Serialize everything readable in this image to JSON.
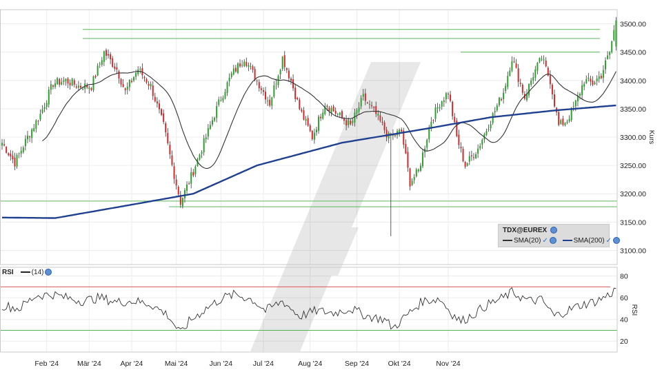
{
  "chart_data": [
    {
      "type": "candlestick",
      "instrument": "TDX@EUREX",
      "ylabel": "Kurs",
      "ylim": [
        3075,
        3525
      ],
      "yticks": [
        "3500.00",
        "3450.00",
        "3400.00",
        "3350.00",
        "3300.00",
        "3250.00",
        "3200.00",
        "3150.00",
        "3100.00"
      ],
      "ytick_values": [
        3500,
        3450,
        3400,
        3350,
        3300,
        3250,
        3200,
        3150,
        3100
      ],
      "xticks": [
        "Feb '24",
        "Mär '24",
        "Apr '24",
        "Mai '24",
        "Jun '24",
        "Jul '24",
        "Aug '24",
        "Sep '24",
        "Okt '24",
        "Nov '24"
      ],
      "grid": true,
      "up_color": "#2ca02c",
      "down_color": "#d62728",
      "sma20_color": "#333333",
      "sma200_color": "#1f3f8f",
      "horizontal_lines": [
        3490,
        3474,
        3450,
        3187,
        3177
      ],
      "legend": {
        "title": "TDX@EUREX",
        "items": [
          "SMA(20)",
          "SMA(200)"
        ]
      },
      "close_anchors": [
        [
          0,
          3290
        ],
        [
          6,
          3255
        ],
        [
          12,
          3300
        ],
        [
          18,
          3340
        ],
        [
          24,
          3395
        ],
        [
          30,
          3400
        ],
        [
          36,
          3390
        ],
        [
          42,
          3390
        ],
        [
          48,
          3450
        ],
        [
          54,
          3420
        ],
        [
          58,
          3380
        ],
        [
          64,
          3420
        ],
        [
          70,
          3390
        ],
        [
          76,
          3320
        ],
        [
          80,
          3250
        ],
        [
          84,
          3185
        ],
        [
          90,
          3240
        ],
        [
          96,
          3300
        ],
        [
          102,
          3360
        ],
        [
          108,
          3410
        ],
        [
          114,
          3440
        ],
        [
          120,
          3400
        ],
        [
          126,
          3360
        ],
        [
          132,
          3440
        ],
        [
          136,
          3400
        ],
        [
          140,
          3350
        ],
        [
          146,
          3300
        ],
        [
          152,
          3360
        ],
        [
          158,
          3340
        ],
        [
          164,
          3320
        ],
        [
          170,
          3370
        ],
        [
          176,
          3340
        ],
        [
          182,
          3300
        ],
        [
          188,
          3310
        ],
        [
          192,
          3220
        ],
        [
          196,
          3240
        ],
        [
          202,
          3330
        ],
        [
          206,
          3360
        ],
        [
          210,
          3380
        ],
        [
          214,
          3300
        ],
        [
          218,
          3250
        ],
        [
          224,
          3280
        ],
        [
          230,
          3330
        ],
        [
          236,
          3380
        ],
        [
          240,
          3440
        ],
        [
          246,
          3370
        ],
        [
          250,
          3410
        ],
        [
          254,
          3440
        ],
        [
          258,
          3400
        ],
        [
          262,
          3320
        ],
        [
          266,
          3330
        ],
        [
          270,
          3360
        ],
        [
          274,
          3400
        ],
        [
          278,
          3395
        ],
        [
          282,
          3410
        ],
        [
          286,
          3450
        ],
        [
          289,
          3506
        ]
      ],
      "sma200_anchors": [
        [
          0,
          3158
        ],
        [
          25,
          3157
        ],
        [
          60,
          3180
        ],
        [
          90,
          3200
        ],
        [
          120,
          3250
        ],
        [
          160,
          3290
        ],
        [
          200,
          3315
        ],
        [
          230,
          3335
        ],
        [
          260,
          3347
        ],
        [
          289,
          3356
        ]
      ]
    },
    {
      "type": "line",
      "name": "RSI",
      "period": "(14)",
      "ylabel": "RSI",
      "ylim": [
        10,
        88
      ],
      "yticks": [
        "80",
        "60",
        "40",
        "20"
      ],
      "ytick_values": [
        80,
        60,
        40,
        20
      ],
      "overbought": 70,
      "oversold": 30,
      "overbought_color": "#e05555",
      "oversold_color": "#55b055",
      "anchors": [
        [
          0,
          53
        ],
        [
          8,
          50
        ],
        [
          16,
          62
        ],
        [
          24,
          63
        ],
        [
          30,
          60
        ],
        [
          38,
          57
        ],
        [
          46,
          60
        ],
        [
          54,
          56
        ],
        [
          62,
          57
        ],
        [
          70,
          54
        ],
        [
          78,
          44
        ],
        [
          84,
          27
        ],
        [
          88,
          38
        ],
        [
          96,
          50
        ],
        [
          104,
          60
        ],
        [
          110,
          63
        ],
        [
          118,
          58
        ],
        [
          124,
          48
        ],
        [
          132,
          57
        ],
        [
          140,
          43
        ],
        [
          148,
          48
        ],
        [
          156,
          46
        ],
        [
          164,
          50
        ],
        [
          172,
          43
        ],
        [
          180,
          40
        ],
        [
          184,
          32
        ],
        [
          190,
          43
        ],
        [
          198,
          57
        ],
        [
          206,
          59
        ],
        [
          212,
          45
        ],
        [
          216,
          38
        ],
        [
          222,
          45
        ],
        [
          228,
          53
        ],
        [
          236,
          60
        ],
        [
          240,
          65
        ],
        [
          248,
          57
        ],
        [
          254,
          58
        ],
        [
          260,
          43
        ],
        [
          266,
          48
        ],
        [
          272,
          53
        ],
        [
          280,
          57
        ],
        [
          286,
          63
        ],
        [
          289,
          68
        ]
      ]
    }
  ]
}
